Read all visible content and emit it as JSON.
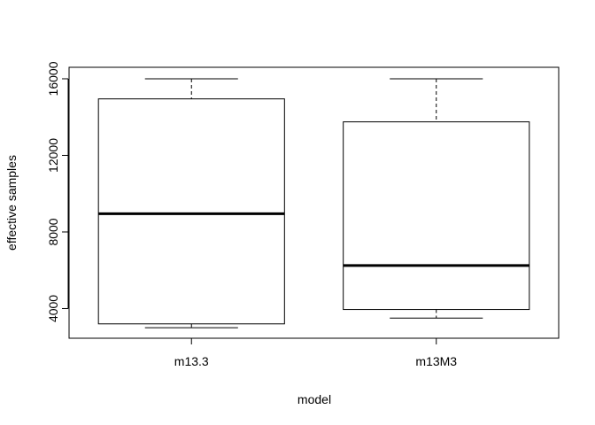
{
  "chart_data": {
    "type": "boxplot",
    "title": "",
    "xlabel": "model",
    "ylabel": "effective samples",
    "categories": [
      "m13.3",
      "m13M3"
    ],
    "boxes": [
      {
        "name": "m13.3",
        "min": 3000,
        "q1": 3200,
        "median": 8950,
        "q3": 14950,
        "max": 16000
      },
      {
        "name": "m13M3",
        "min": 3500,
        "q1": 3950,
        "median": 6250,
        "q3": 13750,
        "max": 16000
      }
    ],
    "ylim": [
      2450,
      16600
    ],
    "yticks": [
      4000,
      8000,
      12000,
      16000
    ],
    "ytick_labels": [
      "4000",
      "8000",
      "12000",
      "16000"
    ],
    "grid": false,
    "legend": "none"
  }
}
